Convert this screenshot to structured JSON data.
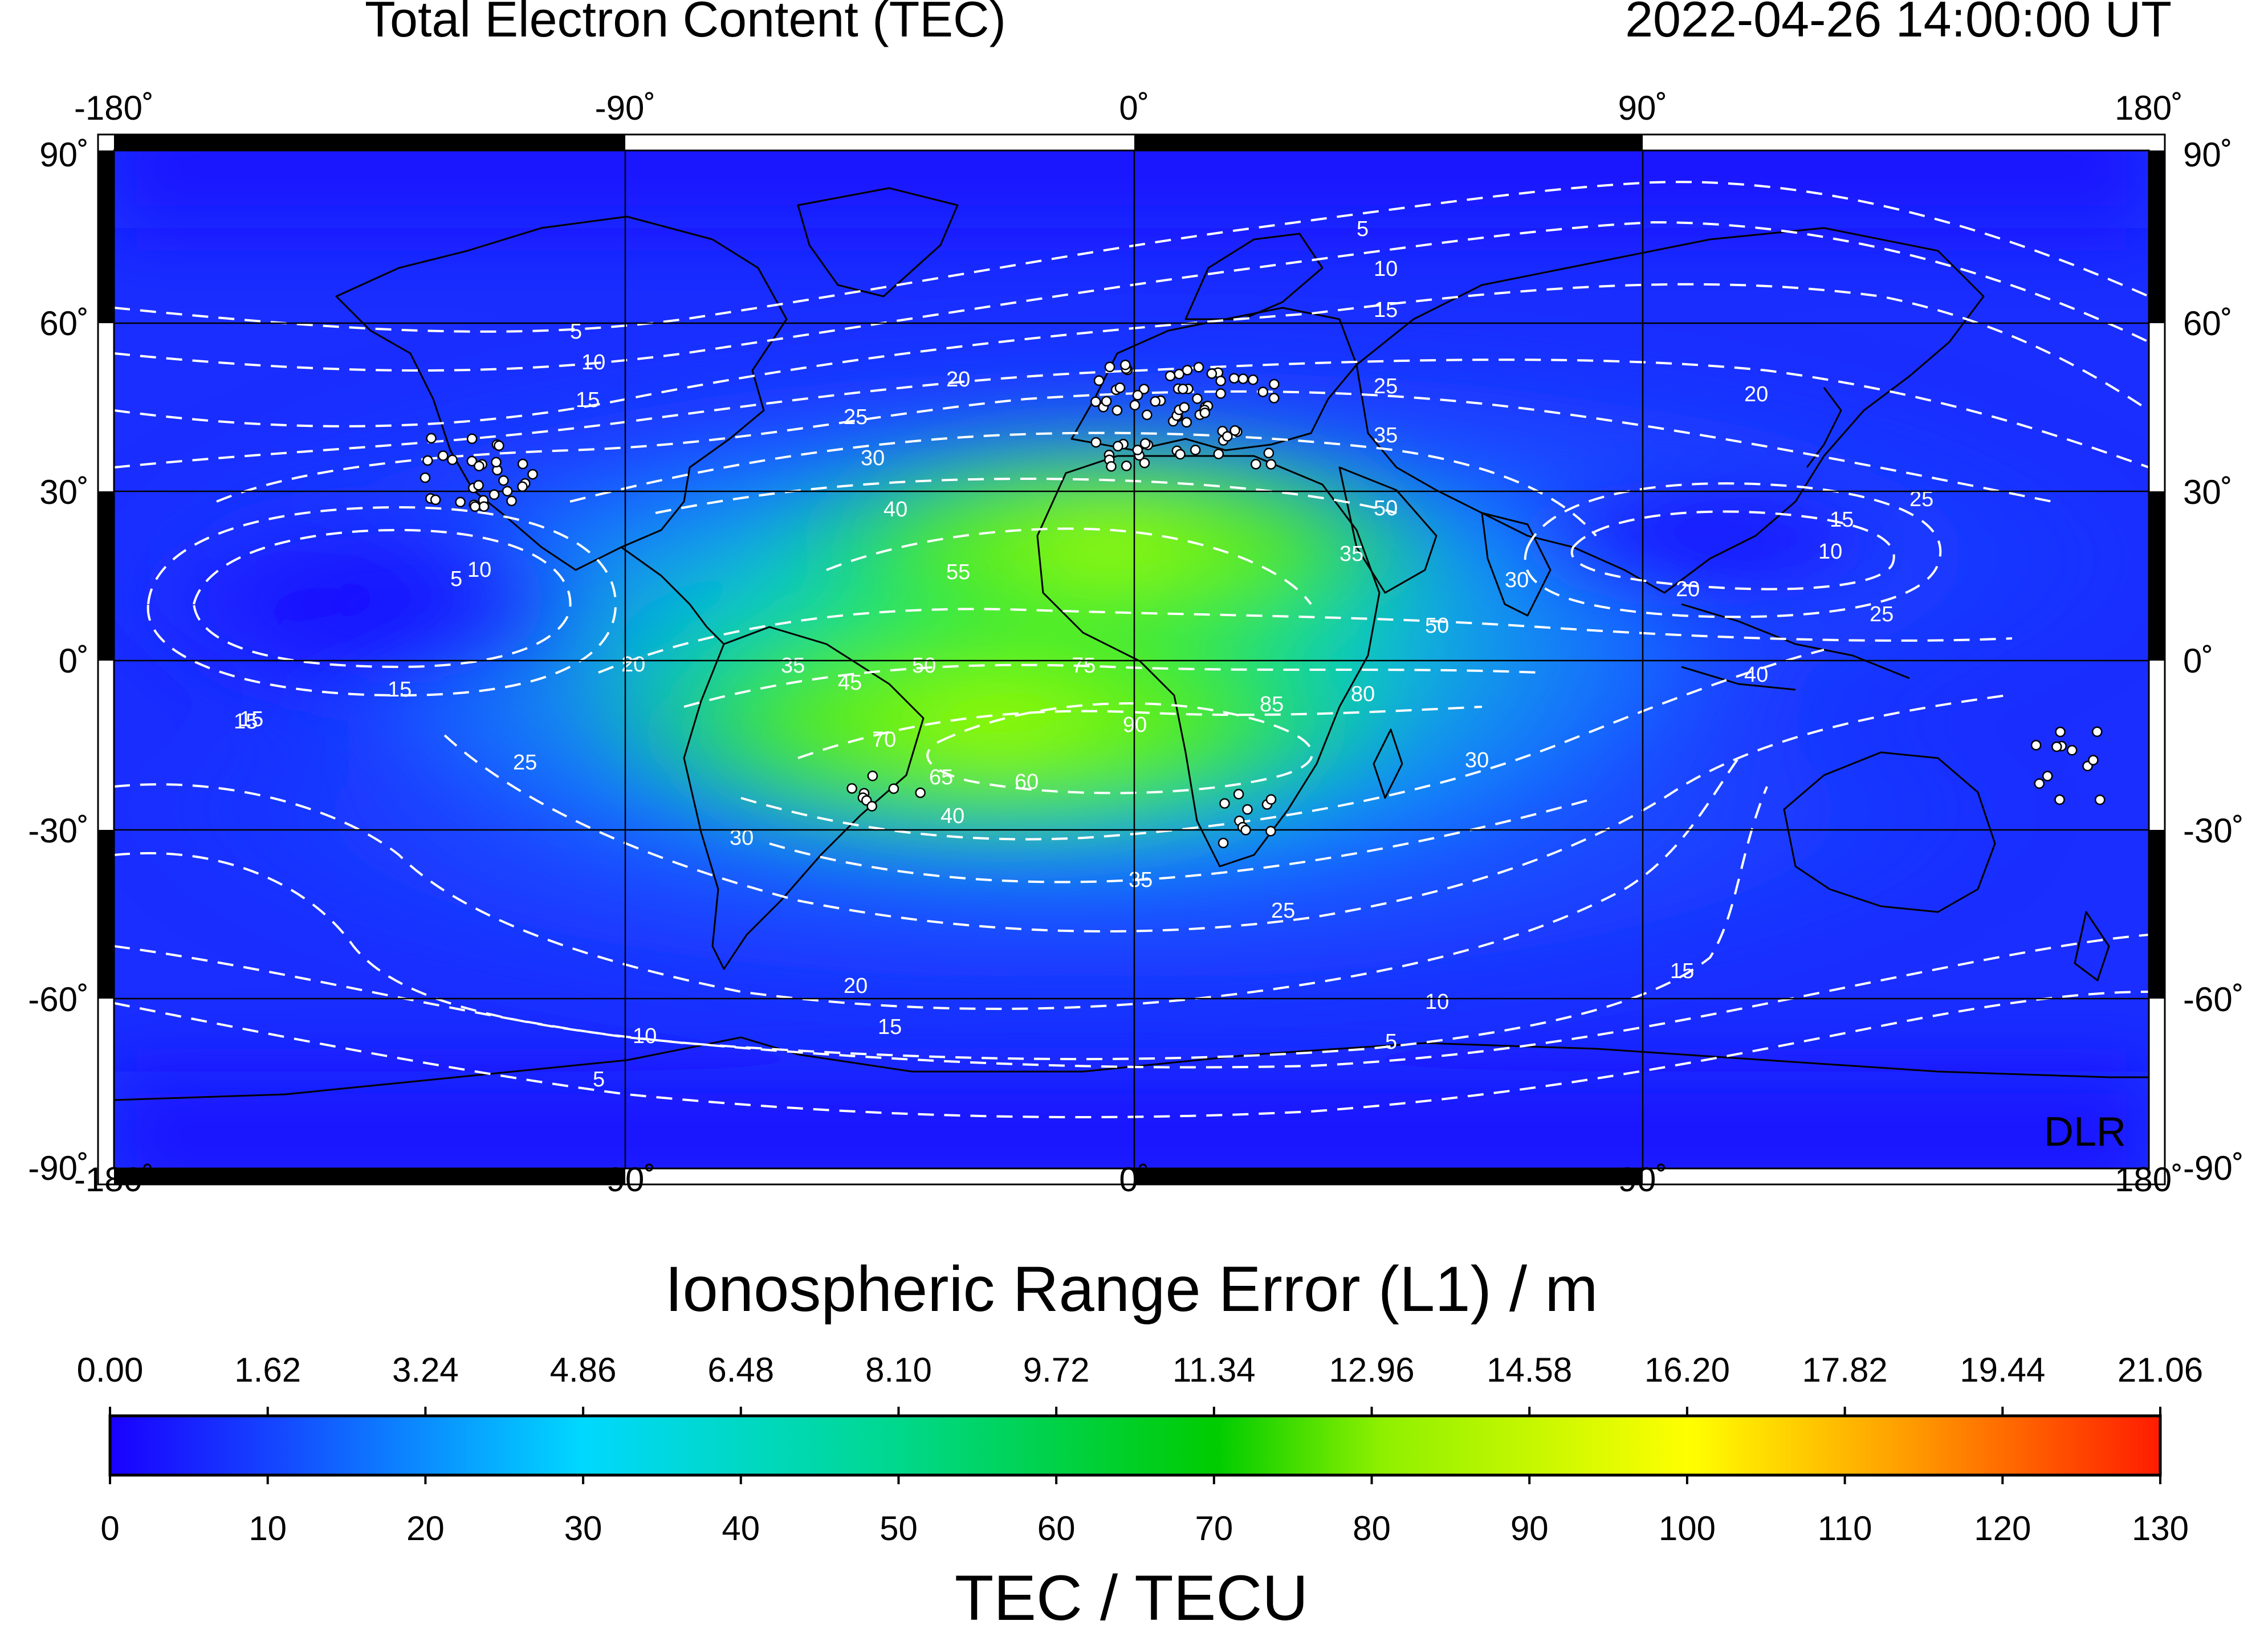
{
  "header": {
    "title": "Total Electron Content (TEC)",
    "timestamp": "2022-04-26  14:00:00 UT"
  },
  "axes": {
    "longitude_labels": [
      "-180˚",
      "-90˚",
      "0˚",
      "90˚",
      "180˚"
    ],
    "latitude_labels": [
      "90˚",
      "60˚",
      "30˚",
      "0˚",
      "-30˚",
      "-60˚",
      "-90˚"
    ]
  },
  "watermark": "DLR",
  "colorbar": {
    "top_title": "Ionospheric Range Error (L1) / m",
    "top_ticks": [
      "0.00",
      "1.62",
      "3.24",
      "4.86",
      "6.48",
      "8.10",
      "9.72",
      "11.34",
      "12.96",
      "14.58",
      "16.20",
      "17.82",
      "19.44",
      "21.06"
    ],
    "bottom_ticks": [
      "0",
      "10",
      "20",
      "30",
      "40",
      "50",
      "60",
      "70",
      "80",
      "90",
      "100",
      "110",
      "120",
      "130"
    ],
    "bottom_title": "TEC / TECU",
    "colors": [
      "#1a00ff",
      "#1545ff",
      "#00d8ff",
      "#00d060",
      "#00cc00",
      "#8ef000",
      "#ffff00",
      "#ff9900",
      "#ff1c00"
    ]
  },
  "contour_labels": {
    "north": [
      "5",
      "10",
      "15",
      "20",
      "25",
      "30",
      "35",
      "40",
      "50"
    ],
    "pacific_low": [
      "5",
      "10",
      "15",
      "20",
      "25"
    ],
    "equatorial": [
      "55",
      "75",
      "90",
      "85",
      "80",
      "70",
      "65",
      "60",
      "50",
      "45",
      "40",
      "35",
      "30"
    ],
    "south": [
      "35",
      "25",
      "20",
      "15",
      "10",
      "5"
    ]
  },
  "stations": {
    "europe": 70,
    "north_america": 30,
    "south_america": 8,
    "africa": 10,
    "oceania": 12
  }
}
